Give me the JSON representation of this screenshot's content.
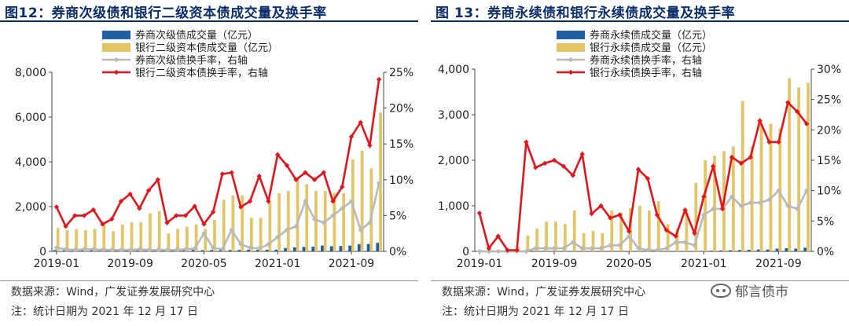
{
  "chart_data": [
    {
      "type": "bar+line",
      "title": "图12：券商次级债和银行二级资本债成交量及换手率",
      "x": [
        "2019-01",
        "2019-02",
        "2019-03",
        "2019-04",
        "2019-05",
        "2019-06",
        "2019-07",
        "2019-08",
        "2019-09",
        "2019-10",
        "2019-11",
        "2019-12",
        "2020-01",
        "2020-02",
        "2020-03",
        "2020-04",
        "2020-05",
        "2020-06",
        "2020-07",
        "2020-08",
        "2020-09",
        "2020-10",
        "2020-11",
        "2020-12",
        "2021-01",
        "2021-02",
        "2021-03",
        "2021-04",
        "2021-05",
        "2021-06",
        "2021-07",
        "2021-08",
        "2021-09",
        "2021-10",
        "2021-11",
        "2021-12"
      ],
      "x_ticks": [
        "2019-01",
        "2019-09",
        "2020-05",
        "2021-01",
        "2021-09"
      ],
      "yleft_ticks": [
        "0",
        "2,000",
        "4,000",
        "6,000",
        "8,000"
      ],
      "yleft_lim": [
        0,
        8000
      ],
      "yright_ticks": [
        "0%",
        "5%",
        "10%",
        "15%",
        "20%",
        "25%"
      ],
      "yright_lim": [
        0,
        25
      ],
      "series": [
        {
          "name": "券商次级债成交量（亿元）",
          "kind": "bar",
          "axis": "left",
          "color": "#1f5fa6",
          "values": [
            60,
            50,
            45,
            55,
            60,
            50,
            60,
            55,
            60,
            70,
            55,
            65,
            50,
            40,
            60,
            70,
            55,
            60,
            70,
            60,
            65,
            75,
            70,
            75,
            80,
            150,
            180,
            200,
            210,
            260,
            230,
            240,
            260,
            320,
            330,
            380
          ]
        },
        {
          "name": "银行二级资本债成交量（亿元）",
          "kind": "bar",
          "axis": "left",
          "color": "#e3c566",
          "values": [
            1050,
            950,
            1000,
            950,
            1000,
            1200,
            900,
            1200,
            1300,
            1300,
            1700,
            1800,
            800,
            1000,
            1100,
            1200,
            1000,
            1400,
            2300,
            2500,
            2500,
            1500,
            1500,
            2200,
            2600,
            2700,
            3200,
            3000,
            2700,
            2700,
            2600,
            2600,
            4100,
            4500,
            3700,
            6200
          ]
        },
        {
          "name": "券商次级债换手率，右轴",
          "kind": "line",
          "axis": "right",
          "color": "#b9b9b9",
          "values": [
            0.5,
            0.3,
            0.2,
            0.3,
            0.3,
            0.2,
            0.2,
            0.2,
            0.2,
            0.3,
            0.2,
            0.2,
            0.2,
            0.2,
            0.3,
            0.4,
            2.5,
            0.5,
            0.3,
            3.0,
            1.0,
            0.5,
            0.4,
            1.0,
            2.0,
            3.0,
            3.5,
            7.0,
            4.5,
            4.0,
            5.0,
            6.0,
            7.0,
            3.0,
            4.0,
            9.5
          ]
        },
        {
          "name": "银行二级资本债换手率，右轴",
          "kind": "line",
          "axis": "right",
          "color": "#e5141b",
          "values": [
            6.2,
            3.5,
            5.0,
            5.0,
            5.8,
            3.8,
            4.5,
            7.0,
            8.0,
            6.0,
            8.5,
            10.0,
            4.0,
            5.0,
            5.0,
            6.3,
            3.8,
            5.5,
            10.8,
            11.0,
            6.2,
            7.0,
            10.5,
            7.0,
            13.5,
            12.0,
            10.0,
            11.0,
            10.0,
            11.0,
            7.0,
            9.0,
            16.0,
            18.0,
            14.8,
            24.0
          ]
        }
      ],
      "legend_placement": "top"
    },
    {
      "type": "bar+line",
      "title": "图 13：券商永续债和银行永续债成交量及换手率",
      "x": [
        "2019-01",
        "2019-02",
        "2019-03",
        "2019-04",
        "2019-05",
        "2019-06",
        "2019-07",
        "2019-08",
        "2019-09",
        "2019-10",
        "2019-11",
        "2019-12",
        "2020-01",
        "2020-02",
        "2020-03",
        "2020-04",
        "2020-05",
        "2020-06",
        "2020-07",
        "2020-08",
        "2020-09",
        "2020-10",
        "2020-11",
        "2020-12",
        "2021-01",
        "2021-02",
        "2021-03",
        "2021-04",
        "2021-05",
        "2021-06",
        "2021-07",
        "2021-08",
        "2021-09",
        "2021-10",
        "2021-11",
        "2021-12"
      ],
      "x_ticks": [
        "2019-01",
        "2019-09",
        "2020-05",
        "2021-01",
        "2021-09"
      ],
      "yleft_ticks": [
        "0",
        "1,000",
        "2,000",
        "3,000",
        "4,000"
      ],
      "yleft_lim": [
        0,
        4000
      ],
      "yright_ticks": [
        "0%",
        "5%",
        "10%",
        "15%",
        "20%",
        "25%",
        "30%"
      ],
      "yright_lim": [
        0,
        30
      ],
      "series": [
        {
          "name": "券商永续债成交量（亿元）",
          "kind": "bar",
          "axis": "left",
          "color": "#1f5fa6",
          "values": [
            0,
            0,
            0,
            0,
            0,
            0,
            0,
            0,
            0,
            0,
            0,
            0,
            0,
            0,
            0,
            0,
            0,
            0,
            0,
            0,
            0,
            0,
            0,
            0,
            10,
            15,
            20,
            25,
            30,
            35,
            40,
            40,
            60,
            70,
            60,
            80
          ]
        },
        {
          "name": "银行永续债成交量（亿元）",
          "kind": "bar",
          "axis": "left",
          "color": "#e3c566",
          "values": [
            30,
            40,
            30,
            50,
            100,
            350,
            500,
            650,
            650,
            600,
            900,
            400,
            450,
            400,
            900,
            850,
            950,
            1000,
            900,
            1100,
            600,
            500,
            900,
            1500,
            2000,
            2100,
            2200,
            2300,
            3300,
            2300,
            2800,
            2800,
            2700,
            3800,
            3600,
            3700
          ]
        },
        {
          "name": "券商永续债换手率，右轴",
          "kind": "line",
          "axis": "right",
          "color": "#b9b9b9",
          "values": [
            0,
            0,
            0,
            0,
            0,
            0,
            0.5,
            0.5,
            0.5,
            0.5,
            1.5,
            0.5,
            0.5,
            0.5,
            1.0,
            1.0,
            2.5,
            0.5,
            0.2,
            0.2,
            0.5,
            1.5,
            1.5,
            1.0,
            6.0,
            7.0,
            7.0,
            9.0,
            7.5,
            8.0,
            8.0,
            8.5,
            10.0,
            7.5,
            7.0,
            10.0
          ]
        },
        {
          "name": "银行永续债换手率，右轴",
          "kind": "line",
          "axis": "right",
          "color": "#e5141b",
          "values": [
            6.3,
            0.5,
            2.5,
            0.2,
            0.2,
            18.0,
            13.8,
            14.5,
            15.0,
            14.0,
            12.5,
            16.0,
            6.2,
            7.5,
            5.5,
            6.0,
            3.3,
            13.5,
            12.0,
            6.0,
            3.5,
            2.5,
            6.8,
            3.0,
            9.0,
            14.0,
            7.0,
            15.5,
            14.5,
            15.5,
            21.5,
            18.0,
            18.0,
            24.5,
            23.0,
            21.0
          ]
        }
      ],
      "legend_placement": "top"
    }
  ],
  "panels": [
    {
      "source": "数据来源：Wind，广发证券发展研究中心",
      "note": "注：统计日期为 2021 年 12 月 17 日"
    },
    {
      "source": "数据来源：Wind，广发证券发展研究中心",
      "note": "注：统计日期为 2021 年 12 月 17 日"
    }
  ],
  "watermark": {
    "text": "郁言债市",
    "icon": "wechat-icon"
  }
}
